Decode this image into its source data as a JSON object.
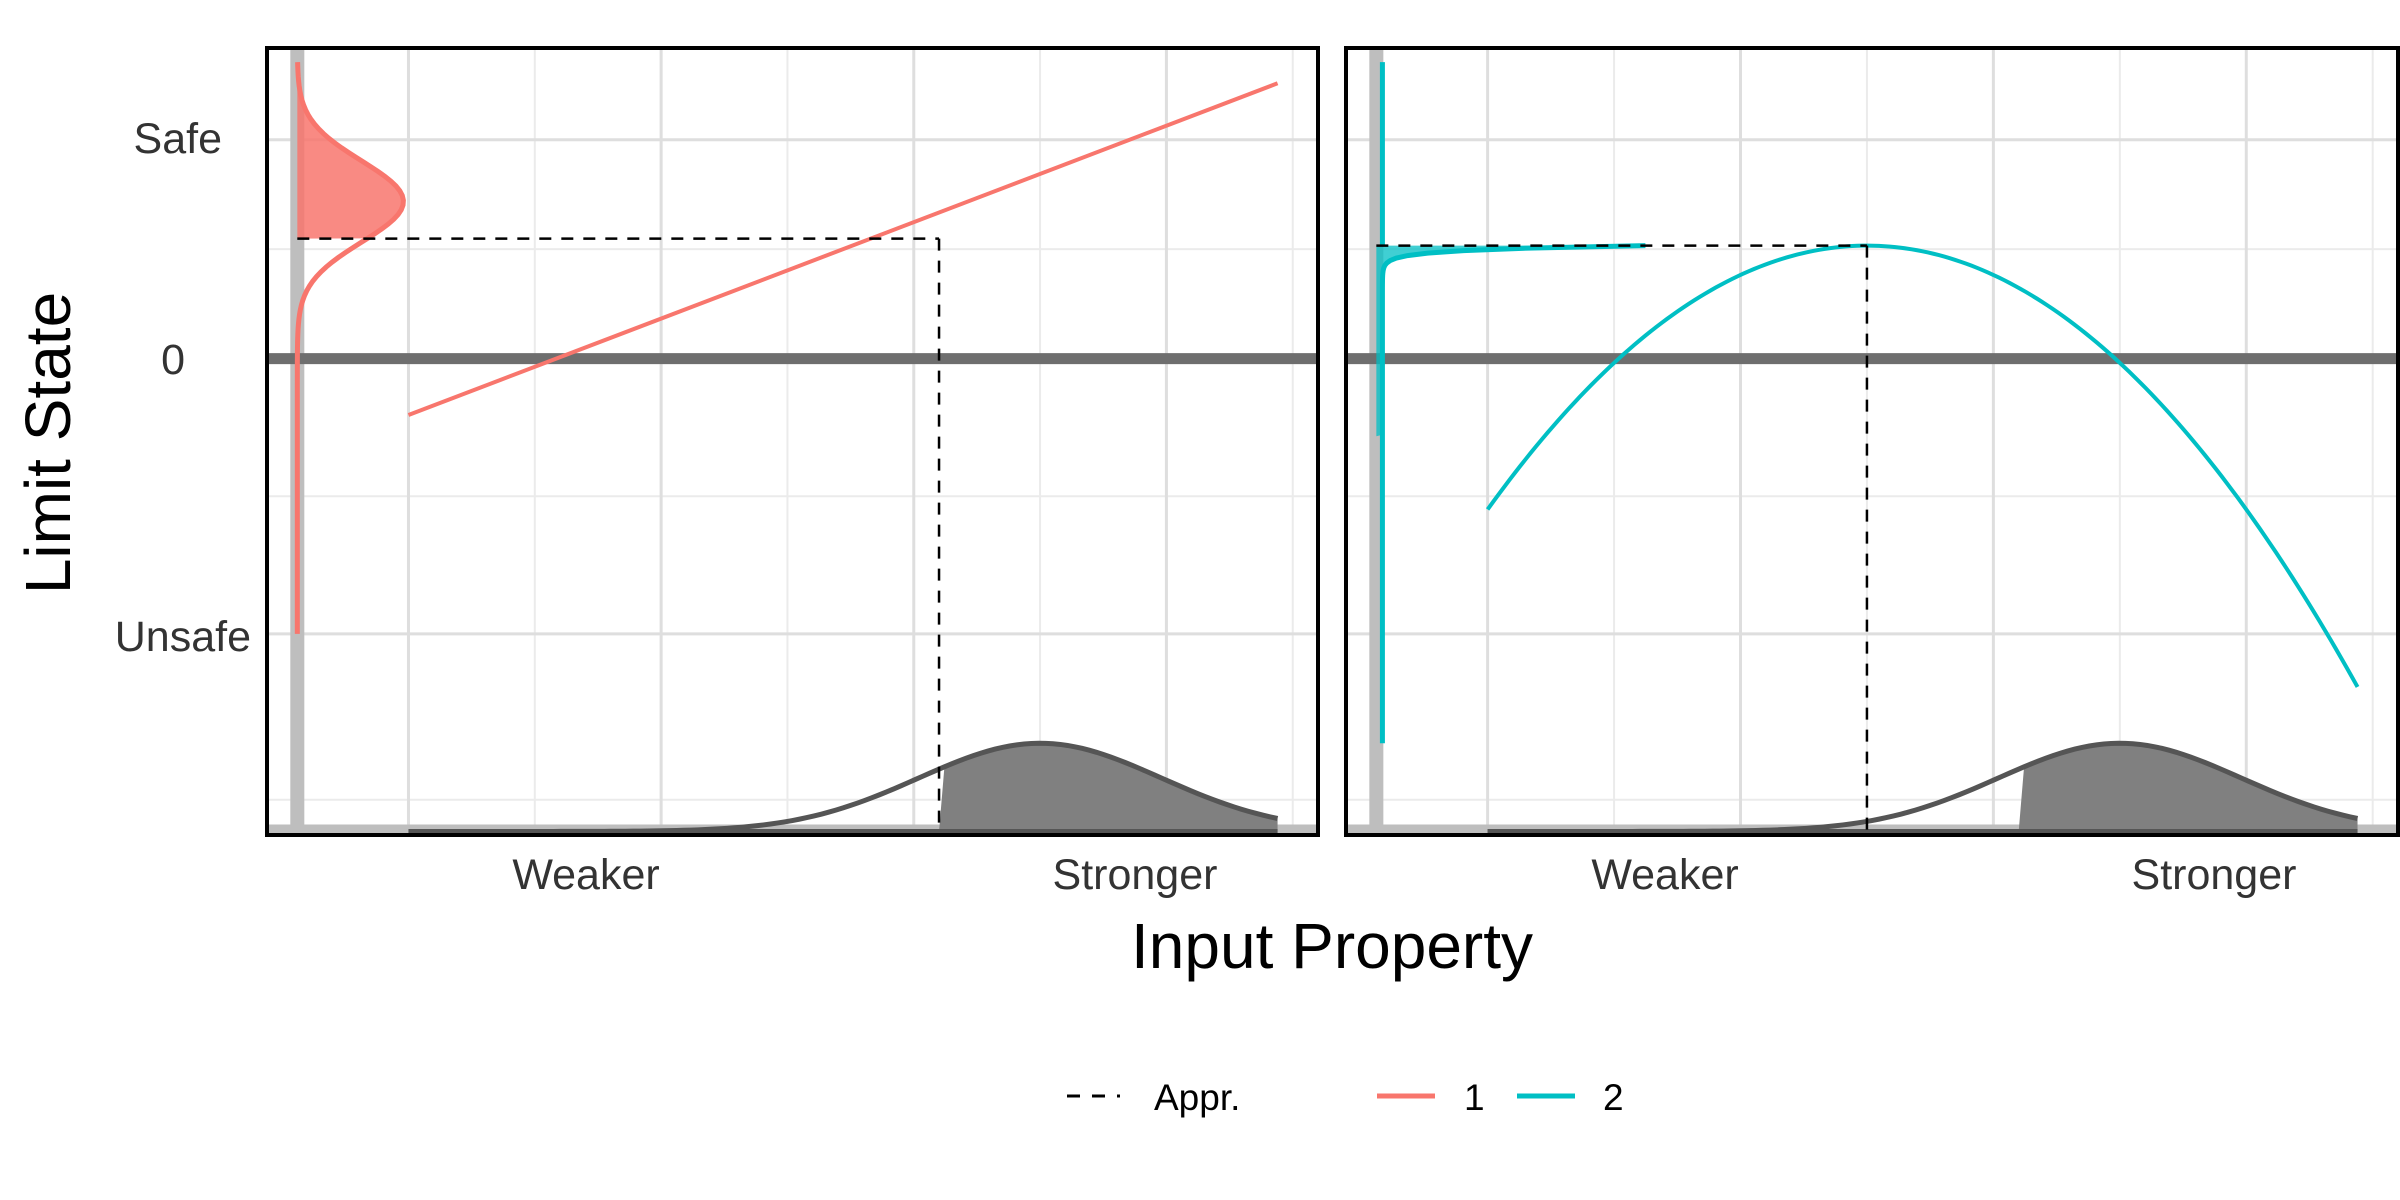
{
  "chart_data": {
    "type": "line",
    "xlabel": "Input Property",
    "ylabel": "Limit State",
    "x_ticks": [
      {
        "value": 0.25,
        "label": "Weaker"
      },
      {
        "value": 0.75,
        "label": "Stronger"
      }
    ],
    "y_ticks": [
      {
        "value": 0.62,
        "label": "Safe"
      },
      {
        "value": 0,
        "label": "0"
      },
      {
        "value": -0.78,
        "label": "Unsafe"
      }
    ],
    "xlim": [
      -0.14,
      0.9
    ],
    "ylim": [
      -1.35,
      0.88
    ],
    "grid": true,
    "legend": {
      "position": "bottom",
      "entries": [
        {
          "label": "Appr.",
          "style": "dashed",
          "color": "#000000"
        },
        {
          "label": "1",
          "style": "solid",
          "color": "#F8766D"
        },
        {
          "label": "2",
          "style": "solid",
          "color": "#00BFC4"
        }
      ]
    },
    "input_density": {
      "description_shown": "normal density of input property along bottom of each panel",
      "x_range": [
        0,
        0.86
      ],
      "mean": 0.625,
      "relative_height": 0.25,
      "shaded_above_x": 0.525,
      "color": "#555555",
      "shade_color": "#808080"
    },
    "panels": [
      {
        "series_label": "1",
        "color": "#F8766D",
        "line": {
          "x": [
            0,
            0.86
          ],
          "y": [
            -0.16,
            0.78
          ]
        },
        "approximation_point": {
          "x": 0.525,
          "y": 0.34
        },
        "output_density_shaded_above_y": 0.34
      },
      {
        "series_label": "2",
        "color": "#00BFC4",
        "curve": {
          "type": "parabola",
          "vertex_x": 0.375,
          "vertex_y": 0.32,
          "x_range": [
            -0.14,
            0.89
          ],
          "end_y": -1.09
        },
        "approximation_point": {
          "x": 0.375,
          "y": 0.32
        },
        "output_density_shaded_above_y": -0.22
      }
    ]
  }
}
